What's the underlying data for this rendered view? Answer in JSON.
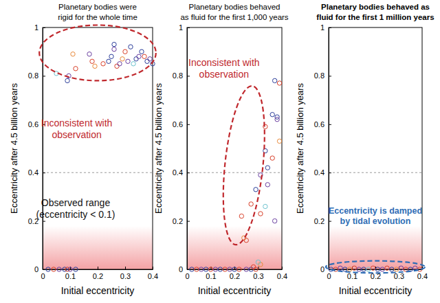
{
  "chart_data": [
    {
      "type": "scatter",
      "title": "Planetary bodies were\nrigid for the whole time",
      "x_label": "Initial eccentricity",
      "y_label": "Eccentricity after 4.5 billion years",
      "xlim": [
        0,
        0.4
      ],
      "xticks": [
        0,
        0.1,
        0.2,
        0.3,
        0.4
      ],
      "ylim": [
        0,
        1
      ],
      "yticks": [
        0,
        0.2,
        0.4,
        0.6,
        0.8,
        1
      ],
      "grid": false,
      "marker": "hollow-circle",
      "threshold": 0.4,
      "annotations": [
        {
          "text": "Inconsistent with\nobservation",
          "color": "#c0282d"
        },
        {
          "text": "Observed range\n(eccentricity < 0.1)",
          "color": "#111111"
        }
      ],
      "x": [
        0.05,
        0.09,
        0.095,
        0.11,
        0.12,
        0.17,
        0.18,
        0.19,
        0.22,
        0.24,
        0.25,
        0.26,
        0.26,
        0.27,
        0.28,
        0.29,
        0.3,
        0.31,
        0.32,
        0.33,
        0.34,
        0.35,
        0.36,
        0.37,
        0.38,
        0.39,
        0.4,
        0.02,
        0.04,
        0.06,
        0.08,
        0.09,
        0.1,
        0.12
      ],
      "values": [
        0.81,
        0.78,
        0.8,
        0.89,
        0.83,
        0.89,
        0.86,
        0.84,
        0.85,
        0.86,
        0.88,
        0.91,
        0.93,
        0.84,
        0.85,
        0.87,
        0.9,
        0.86,
        0.92,
        0.85,
        0.87,
        0.88,
        0.9,
        0.88,
        0.86,
        0.87,
        0.85,
        0,
        0,
        0,
        0,
        0,
        0,
        0
      ],
      "colors": [
        "#6cc3cf",
        "#2c3e9a",
        "#6b3fa0",
        "#e8893a",
        "#d9412b",
        "#6b3fa0",
        "#d9412b",
        "#e8893a",
        "#d9412b",
        "#2c3e9a",
        "#2c3e9a",
        "#6b3fa0",
        "#2c3e9a",
        "#d9412b",
        "#6b3fa0",
        "#e8893a",
        "#d9412b",
        "#6b3fa0",
        "#2c3e9a",
        "#6cc3cf",
        "#2c3e9a",
        "#6b3fa0",
        "#2c3e9a",
        "#d9412b",
        "#2c3e9a",
        "#6b3fa0",
        "#2c3e9a",
        "#2c3e9a",
        "#d9412b",
        "#6b3fa0",
        "#2c3e9a",
        "#d9412b",
        "#6b3fa0",
        "#2c3e9a"
      ]
    },
    {
      "type": "scatter",
      "title": "Planetary bodies behaved\nas fluid for the first 1,000 years",
      "x_label": "Initial eccentricity",
      "y_label": "Eccentricity after 4.5 billion years",
      "xlim": [
        0,
        0.4
      ],
      "xticks": [
        0,
        0.1,
        0.2,
        0.3,
        0.4
      ],
      "ylim": [
        0,
        1
      ],
      "yticks": [
        0,
        0.2,
        0.4,
        0.6,
        0.8,
        1
      ],
      "grid": false,
      "marker": "hollow-circle",
      "threshold": 0.4,
      "annotations": [
        {
          "text": "Inconsistent with\nobservation",
          "color": "#c0282d"
        }
      ],
      "x": [
        0.02,
        0.04,
        0.06,
        0.08,
        0.1,
        0.12,
        0.14,
        0.16,
        0.18,
        0.2,
        0.22,
        0.25,
        0.27,
        0.29,
        0.23,
        0.24,
        0.25,
        0.27,
        0.29,
        0.31,
        0.31,
        0.33,
        0.33,
        0.33,
        0.34,
        0.34,
        0.36,
        0.36,
        0.37,
        0.37,
        0.38,
        0.38,
        0.39,
        0.39,
        0.31,
        0.28,
        0.3
      ],
      "values": [
        0,
        0,
        0,
        0,
        0,
        0,
        0,
        0,
        0,
        0,
        0,
        0,
        0,
        0,
        0.22,
        0.13,
        0.12,
        0.27,
        0.33,
        0.39,
        0.23,
        0.26,
        0.49,
        0.59,
        0.42,
        0.35,
        0.64,
        0.46,
        0.78,
        0.2,
        0.63,
        0.62,
        0.53,
        0.77,
        0.02,
        0.01,
        0.03
      ],
      "colors": [
        "#2c3e9a",
        "#d9412b",
        "#6b3fa0",
        "#2c3e9a",
        "#d9412b",
        "#6b3fa0",
        "#2c3e9a",
        "#d9412b",
        "#6b3fa0",
        "#2c3e9a",
        "#d9412b",
        "#6b3fa0",
        "#2c3e9a",
        "#d9412b",
        "#d9412b",
        "#e8893a",
        "#d9412b",
        "#d9412b",
        "#2c3e9a",
        "#6b3fa0",
        "#d9412b",
        "#6cc3cf",
        "#2c3e9a",
        "#d9412b",
        "#2c3e9a",
        "#6b3fa0",
        "#2c3e9a",
        "#d9412b",
        "#2c3e9a",
        "#6b3fa0",
        "#2c3e9a",
        "#6b3fa0",
        "#e8893a",
        "#d9412b",
        "#e8893a",
        "#d9412b",
        "#6cc3cf"
      ]
    },
    {
      "type": "scatter",
      "title": "Planetary bodies behaved as\nfluid for the first 1 million years",
      "x_label": "Initial eccentricity",
      "y_label": "Eccentricity after 4.5 billion years",
      "xlim": [
        0,
        0.4
      ],
      "xticks": [
        0,
        0.1,
        0.2,
        0.3,
        0.4
      ],
      "ylim": [
        0,
        1
      ],
      "yticks": [
        0,
        0.2,
        0.4,
        0.6,
        0.8,
        1
      ],
      "grid": false,
      "marker": "hollow-circle",
      "threshold": 0.4,
      "annotations": [
        {
          "text": "Eccentricity is damped\nby tidal evolution",
          "color": "#2f6db5"
        }
      ],
      "x": [
        0.01,
        0.03,
        0.05,
        0.07,
        0.09,
        0.11,
        0.13,
        0.15,
        0.17,
        0.19,
        0.21,
        0.23,
        0.25,
        0.27,
        0.29,
        0.31,
        0.33,
        0.35,
        0.37,
        0.39
      ],
      "values": [
        0,
        0,
        0.005,
        0,
        0,
        0.005,
        0,
        0,
        0,
        0.005,
        0,
        0,
        0.005,
        0,
        0,
        0.005,
        0,
        0,
        0.005,
        0
      ],
      "colors": [
        "#2c3e9a",
        "#d9412b",
        "#6b3fa0",
        "#2c3e9a",
        "#e8893a",
        "#d9412b",
        "#6b3fa0",
        "#2c3e9a",
        "#6cc3cf",
        "#d9412b",
        "#2c3e9a",
        "#6b3fa0",
        "#d9412b",
        "#2c3e9a",
        "#e8893a",
        "#6b3fa0",
        "#d9412b",
        "#2c3e9a",
        "#6b3fa0",
        "#d9412b"
      ]
    }
  ]
}
